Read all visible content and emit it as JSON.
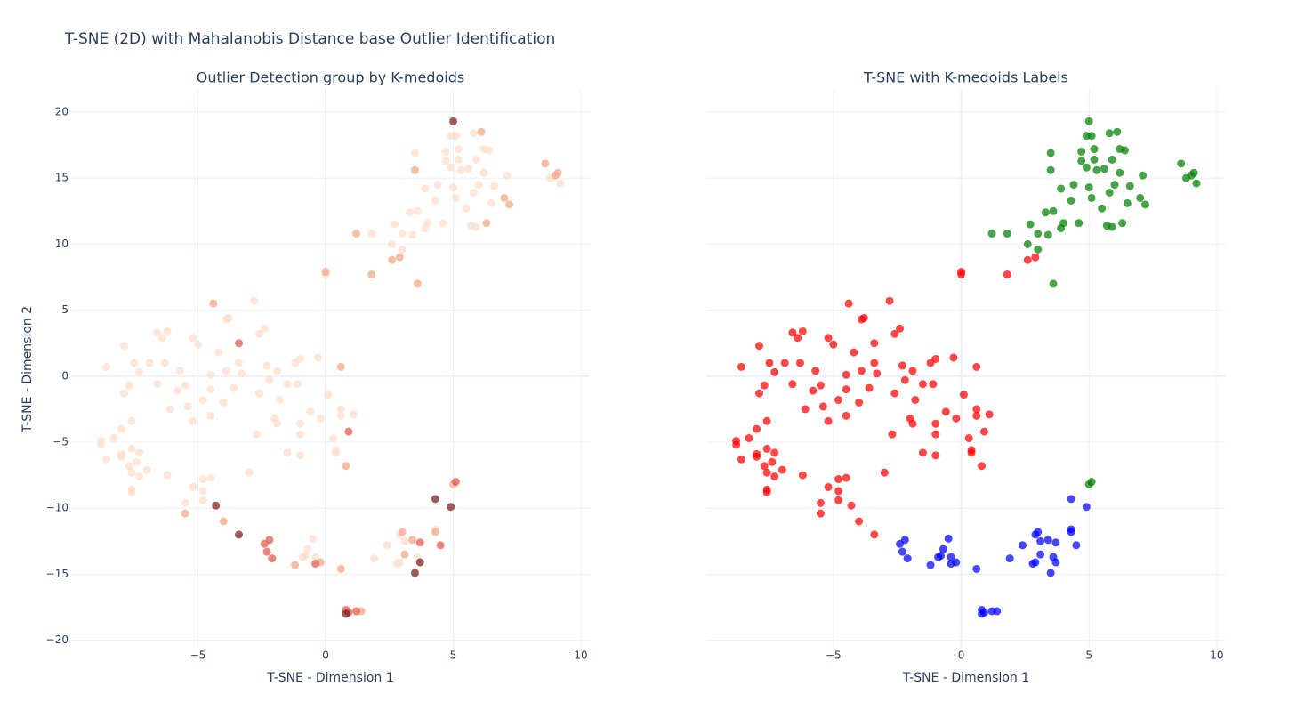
{
  "title": "T-SNE (2D) with Mahalanobis Distance base Outlier Identification",
  "chart_data": [
    {
      "type": "scatter",
      "title": "Outlier Detection group by K-medoids",
      "xlabel": "T-SNE - Dimension 1",
      "ylabel": "T-SNE - Dimension 2",
      "xlim": [
        -9.97,
        10.35
      ],
      "ylim": [
        -20.7,
        21.75
      ],
      "xticks": [
        {
          "value": -5,
          "label": "−5"
        },
        0,
        5,
        10
      ],
      "yticks": [
        {
          "value": -20,
          "label": "−20"
        },
        {
          "value": -15,
          "label": "−15"
        },
        {
          "value": -10,
          "label": "−10"
        },
        {
          "value": -5,
          "label": "−5"
        },
        0,
        5,
        10,
        15,
        20
      ],
      "grid": true,
      "series": [
        {
          "color": "#fddcc9",
          "x": [
            5.1,
            4.9,
            5.8,
            5.2,
            6.2,
            3.5,
            4.7,
            6.4,
            4.7,
            5.2,
            5.9,
            4.9,
            5.3,
            5.6,
            6.2,
            7.1,
            8.8,
            9.2,
            3.9,
            4.4,
            5.0,
            5.8,
            6.0,
            6.6,
            4.3,
            5.1,
            6.5,
            3.3,
            3.6,
            5.5,
            2.7,
            4.0,
            4.6,
            3.9,
            5.7,
            5.9,
            1.8,
            3.0,
            3.4,
            2.6,
            3.0,
            0.0,
            -2.8,
            -3.9,
            -3.8,
            -6.2,
            -6.6,
            -6.4,
            -5.2,
            -2.4,
            -2.6,
            -7.9,
            -5.0,
            -4.2,
            -7.5,
            -6.9,
            -6.3,
            -3.4,
            -1.0,
            -0.3,
            -1.2,
            -2.3,
            -8.6,
            -7.3,
            -5.7,
            -4.5,
            -3.9,
            -3.3,
            -1.9,
            -7.7,
            -6.6,
            -5.5,
            -5.8,
            -4.5,
            -3.6,
            -2.2,
            -1.5,
            -1.1,
            -7.9,
            -2.6,
            -4.8,
            -4.0,
            -1.8,
            0.1,
            -6.1,
            -5.4,
            -0.6,
            0.6,
            -4.5,
            -5.2,
            -2.0,
            -1.9,
            -1.0,
            -0.2,
            0.6,
            1.1,
            -7.6,
            -8.0,
            -8.8,
            -8.3,
            -8.8,
            -7.6,
            -7.3,
            -8.0,
            -8.0,
            -8.6,
            -7.4,
            -7.7,
            -7.0,
            -7.6,
            -7.3,
            -7.6,
            -7.6,
            -2.7,
            -1.0,
            0.3,
            -1.5,
            -1.0,
            0.4,
            0.4,
            -3.0,
            -6.2,
            -4.5,
            -4.8,
            -5.2,
            -4.8,
            -5.5,
            -4.8,
            4.3,
            2.9,
            3.1,
            2.4,
            -0.5,
            -0.7,
            -0.8,
            -0.9,
            -0.4,
            3.6,
            1.9,
            2.8,
            2.9
          ],
          "y": [
            18.2,
            18.2,
            18.4,
            17.2,
            17.2,
            16.9,
            17.0,
            17.1,
            16.3,
            16.4,
            16.4,
            15.8,
            15.6,
            15.7,
            15.4,
            15.2,
            15.0,
            14.6,
            14.2,
            14.5,
            14.3,
            13.9,
            14.5,
            14.4,
            13.3,
            13.5,
            13.1,
            12.4,
            12.5,
            12.7,
            11.5,
            11.6,
            11.6,
            11.2,
            11.4,
            11.3,
            10.8,
            10.8,
            10.7,
            10.0,
            9.6,
            7.7,
            5.7,
            4.3,
            4.4,
            3.4,
            3.3,
            2.9,
            2.9,
            3.6,
            3.2,
            2.3,
            2.4,
            1.8,
            1.0,
            1.0,
            1.0,
            1.0,
            1.3,
            1.4,
            1.0,
            0.8,
            0.7,
            0.3,
            0.4,
            0.1,
            0.4,
            0.2,
            0.4,
            -0.7,
            -0.6,
            -0.7,
            -1.1,
            -1.0,
            -0.9,
            -0.3,
            -0.6,
            -0.6,
            -1.3,
            -1.3,
            -1.8,
            -2.0,
            -1.8,
            -1.4,
            -2.5,
            -2.3,
            -2.7,
            -2.5,
            -3.0,
            -3.4,
            -3.2,
            -3.6,
            -3.6,
            -3.2,
            -3.0,
            -2.9,
            -3.4,
            -4.0,
            -4.9,
            -4.7,
            -5.2,
            -5.5,
            -5.8,
            -5.9,
            -6.1,
            -6.3,
            -6.5,
            -6.8,
            -7.1,
            -7.3,
            -7.6,
            -8.8,
            -8.6,
            -4.4,
            -4.4,
            -4.7,
            -5.8,
            -6.0,
            -5.8,
            -5.6,
            -7.3,
            -7.5,
            -7.7,
            -7.8,
            -8.4,
            -8.7,
            -9.6,
            -9.4,
            -11.6,
            -12.0,
            -12.5,
            -12.8,
            -12.3,
            -13.1,
            -13.6,
            -13.7,
            -13.7,
            -13.7,
            -13.8,
            -14.2,
            -14.1
          ]
        },
        {
          "color": "#f4a583",
          "x": [
            6.1,
            3.5,
            8.6,
            9.0,
            9.1,
            7.0,
            7.2,
            6.3,
            1.2,
            3.6,
            5.0,
            2.9,
            2.6,
            1.8,
            0.0,
            -4.4,
            0.8,
            -4.0,
            -5.5,
            4.3,
            3.0,
            3.4,
            3.1,
            -1.2,
            -0.2,
            0.6,
            1.4,
            0.6
          ],
          "y": [
            18.5,
            15.6,
            16.1,
            15.2,
            15.4,
            13.5,
            13.0,
            11.6,
            10.8,
            7.0,
            -8.2,
            9.0,
            8.8,
            7.7,
            7.9,
            5.5,
            -6.8,
            -11.0,
            -10.4,
            -11.8,
            -11.8,
            -12.4,
            -13.5,
            -14.3,
            -14.1,
            -14.6,
            -17.8,
            0.7
          ]
        },
        {
          "color": "#e0574a",
          "x": [
            5.1,
            -3.4,
            0.9,
            3.7,
            4.5,
            -2.2,
            -2.4,
            -2.3,
            -2.1,
            -0.4,
            0.8,
            0.9,
            1.2
          ],
          "y": [
            -8.0,
            2.5,
            -4.2,
            -12.6,
            -12.8,
            -12.4,
            -12.7,
            -13.3,
            -13.8,
            -14.2,
            -17.7,
            -17.9,
            -17.8
          ]
        },
        {
          "color": "#7a1a1a",
          "x": [
            5.0,
            -4.3,
            -3.4,
            4.9,
            4.3,
            3.7,
            3.5,
            0.8
          ],
          "y": [
            19.3,
            -9.8,
            -12.0,
            -9.9,
            -9.3,
            -14.1,
            -14.9,
            -18.0
          ]
        }
      ]
    },
    {
      "type": "scatter",
      "title": "T-SNE with K-medoids Labels",
      "xlabel": "T-SNE - Dimension 1",
      "xlim": [
        -9.97,
        10.35
      ],
      "ylim": [
        -20.7,
        21.75
      ],
      "xticks": [
        {
          "value": -5,
          "label": "−5"
        },
        0,
        5,
        10
      ],
      "yticks": [
        -20,
        -15,
        -10,
        -5,
        0,
        5,
        10,
        15,
        20
      ],
      "grid": true,
      "series": [
        {
          "color": "#ff0000",
          "x": [
            2.9,
            2.6,
            1.8,
            0.0,
            0.0,
            -4.4,
            -2.8,
            -3.9,
            -3.8,
            -6.2,
            -6.6,
            -6.4,
            -5.2,
            -2.4,
            -2.6,
            -7.9,
            -5.0,
            -3.4,
            -4.2,
            -7.5,
            -6.9,
            -6.3,
            -3.4,
            -1.0,
            -0.3,
            -1.2,
            -2.3,
            -8.6,
            0.6,
            -7.3,
            -5.7,
            -4.5,
            -3.9,
            -3.3,
            -1.9,
            -7.7,
            -6.6,
            -5.5,
            -5.8,
            -4.5,
            -3.6,
            -2.2,
            -1.5,
            -1.1,
            -7.9,
            -2.6,
            -4.8,
            -4.0,
            -1.8,
            0.1,
            -6.1,
            -5.4,
            -0.6,
            0.6,
            -4.5,
            -5.2,
            -2.0,
            -1.9,
            -1.0,
            -0.2,
            0.6,
            1.1,
            -7.6,
            -8.0,
            -8.8,
            -8.3,
            -8.8,
            -7.6,
            -7.3,
            -8.0,
            -8.0,
            -8.6,
            -7.4,
            -7.7,
            -7.0,
            -7.6,
            -7.3,
            -7.6,
            -7.6,
            -2.7,
            -1.0,
            0.3,
            0.9,
            -1.5,
            -1.0,
            0.4,
            0.4,
            0.8,
            -3.0,
            -6.2,
            -4.5,
            -4.8,
            -5.2,
            -4.8,
            -5.5,
            -4.8,
            -4.3,
            -5.5,
            -4.0,
            -3.4
          ],
          "y": [
            9.0,
            8.8,
            7.7,
            7.9,
            7.7,
            5.5,
            5.7,
            4.3,
            4.4,
            3.4,
            3.3,
            2.9,
            2.9,
            3.6,
            3.2,
            2.3,
            2.4,
            2.5,
            1.8,
            1.0,
            1.0,
            1.0,
            1.0,
            1.3,
            1.4,
            1.0,
            0.8,
            0.7,
            0.7,
            0.3,
            0.4,
            0.1,
            0.4,
            0.2,
            0.4,
            -0.7,
            -0.6,
            -0.7,
            -1.1,
            -1.0,
            -0.9,
            -0.3,
            -0.6,
            -0.6,
            -1.3,
            -1.3,
            -1.8,
            -2.0,
            -1.8,
            -1.4,
            -2.5,
            -2.3,
            -2.7,
            -2.5,
            -3.0,
            -3.4,
            -3.2,
            -3.6,
            -3.6,
            -3.2,
            -3.0,
            -2.9,
            -3.4,
            -4.0,
            -4.9,
            -4.7,
            -5.2,
            -5.5,
            -5.8,
            -5.9,
            -6.1,
            -6.3,
            -6.5,
            -6.8,
            -7.1,
            -7.3,
            -7.6,
            -8.8,
            -8.6,
            -4.4,
            -4.4,
            -4.7,
            -4.2,
            -5.8,
            -6.0,
            -5.8,
            -5.6,
            -6.8,
            -7.3,
            -7.5,
            -7.7,
            -7.8,
            -8.4,
            -8.7,
            -9.6,
            -9.4,
            -9.8,
            -10.4,
            -11.0,
            -12.0
          ]
        },
        {
          "color": "#0000ff",
          "x": [
            4.9,
            4.3,
            4.3,
            4.3,
            3.0,
            2.9,
            3.4,
            3.1,
            3.7,
            2.4,
            4.5,
            -2.2,
            -2.4,
            -0.5,
            -2.3,
            -0.7,
            -0.8,
            -0.9,
            -0.4,
            -2.1,
            3.1,
            3.6,
            1.9,
            3.7,
            2.8,
            2.9,
            -1.2,
            -0.4,
            -0.2,
            0.6,
            3.5,
            0.8,
            0.8,
            0.9,
            1.2,
            1.4
          ],
          "y": [
            -9.9,
            -9.3,
            -11.6,
            -11.8,
            -11.8,
            -12.0,
            -12.4,
            -12.5,
            -12.6,
            -12.8,
            -12.8,
            -12.4,
            -12.7,
            -12.3,
            -13.3,
            -13.1,
            -13.6,
            -13.7,
            -13.7,
            -13.8,
            -13.5,
            -13.7,
            -13.8,
            -14.1,
            -14.2,
            -14.1,
            -14.3,
            -14.2,
            -14.1,
            -14.6,
            -14.9,
            -17.7,
            -18.0,
            -17.9,
            -17.8,
            -17.8
          ]
        },
        {
          "color": "#008000",
          "x": [
            5.0,
            5.1,
            4.9,
            5.8,
            6.1,
            5.2,
            6.2,
            3.5,
            4.7,
            6.4,
            4.7,
            5.2,
            5.9,
            4.9,
            5.3,
            5.6,
            3.5,
            6.2,
            7.1,
            8.6,
            8.8,
            9.0,
            9.1,
            9.2,
            3.9,
            4.4,
            5.0,
            5.8,
            6.0,
            6.6,
            4.3,
            5.1,
            6.5,
            7.0,
            7.2,
            3.3,
            3.6,
            5.5,
            2.7,
            4.0,
            4.6,
            6.3,
            3.9,
            5.7,
            5.9,
            1.2,
            1.8,
            3.0,
            3.4,
            2.6,
            3.0,
            3.6,
            5.1,
            5.0
          ],
          "y": [
            19.3,
            18.2,
            18.2,
            18.4,
            18.5,
            17.2,
            17.2,
            16.9,
            17.0,
            17.1,
            16.3,
            16.4,
            16.4,
            15.8,
            15.6,
            15.7,
            15.6,
            15.4,
            15.2,
            16.1,
            15.0,
            15.2,
            15.4,
            14.6,
            14.2,
            14.5,
            14.3,
            13.9,
            14.5,
            14.4,
            13.3,
            13.5,
            13.1,
            13.5,
            13.0,
            12.4,
            12.5,
            12.7,
            11.5,
            11.6,
            11.6,
            11.6,
            11.2,
            11.4,
            11.3,
            10.8,
            10.8,
            10.8,
            10.7,
            10.0,
            9.6,
            7.0,
            -8.0,
            -8.2
          ]
        }
      ]
    }
  ]
}
